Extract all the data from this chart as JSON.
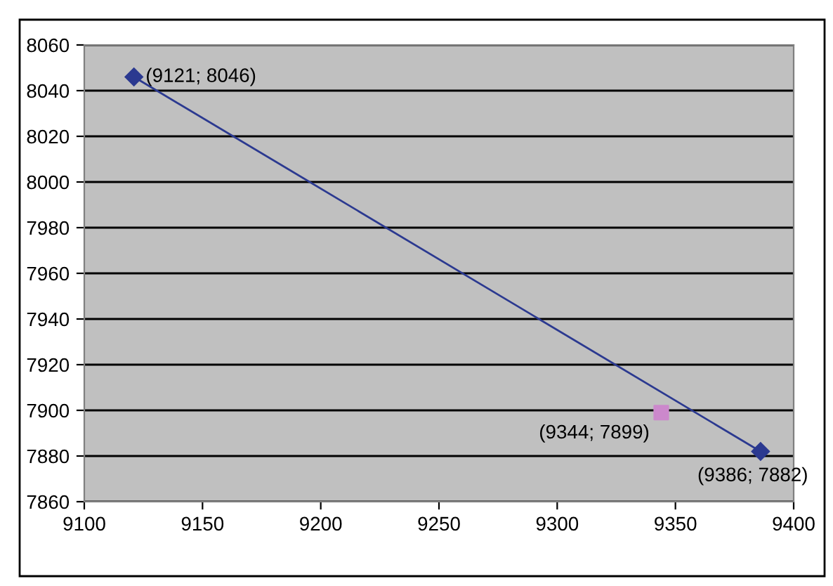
{
  "chart_data": {
    "type": "line",
    "series": [
      {
        "color": "#2b3990",
        "x": [
          9121,
          9386
        ],
        "values": [
          8046,
          7882
        ],
        "marker": "diamond"
      },
      {
        "type": "scatter",
        "color": "#cc88cc",
        "x": [
          9344
        ],
        "values": [
          7899
        ],
        "marker": "square"
      }
    ],
    "annotations": [
      {
        "text": "(9121; 8046)",
        "x": 9121,
        "y": 8046
      },
      {
        "text": "(9344; 7899)",
        "x": 9344,
        "y": 7899
      },
      {
        "text": "(9386; 7882)",
        "x": 9386,
        "y": 7882
      }
    ],
    "xlim": [
      9100,
      9400
    ],
    "xticks": [
      9100,
      9150,
      9200,
      9250,
      9300,
      9350,
      9400
    ],
    "ylim": [
      7860,
      8060
    ],
    "yticks": [
      7860,
      7880,
      7900,
      7920,
      7940,
      7960,
      7980,
      8000,
      8020,
      8040,
      8060
    ],
    "grid": "y",
    "legend": false
  }
}
